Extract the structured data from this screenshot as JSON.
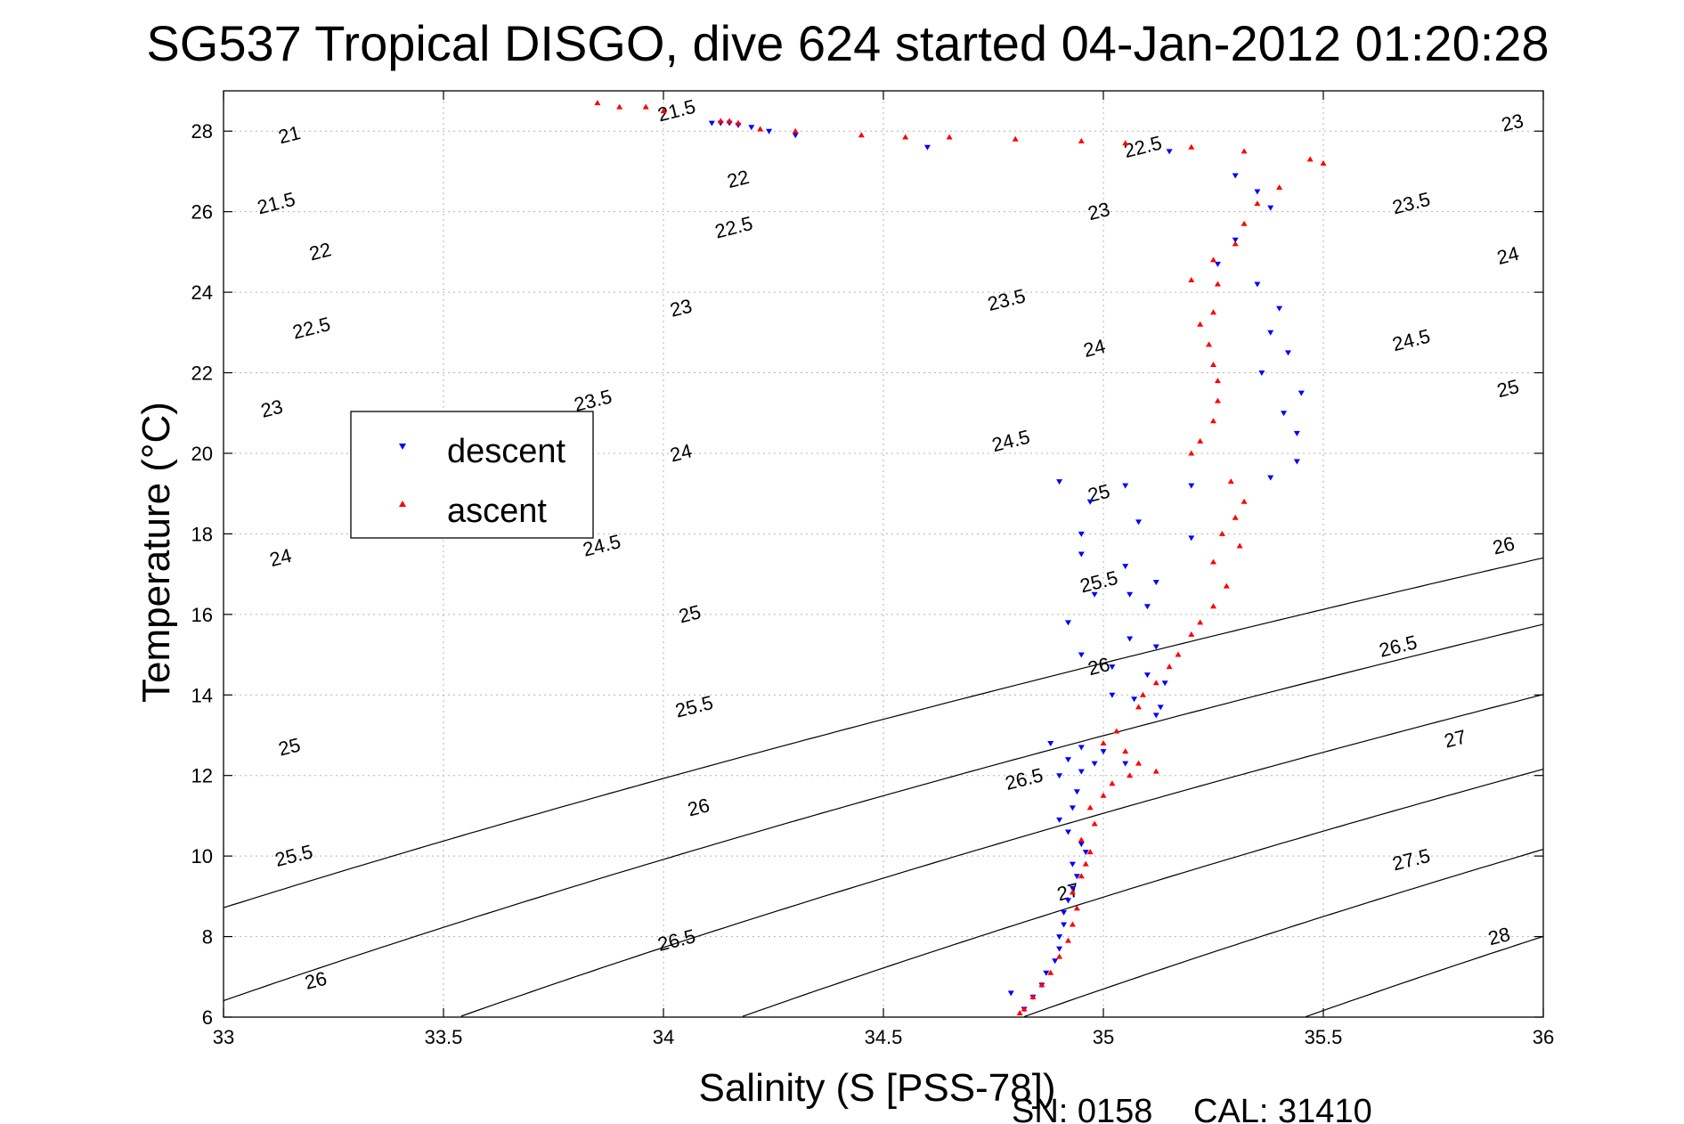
{
  "chart_data": {
    "type": "scatter",
    "title": "SG537 Tropical DISGO, dive 624 started 04-Jan-2012 01:20:28",
    "xlabel": "Salinity (S [PSS-78])",
    "ylabel": "Temperature (°C)",
    "xlim": [
      33,
      36
    ],
    "ylim": [
      6,
      29
    ],
    "xticks": [
      33,
      33.5,
      34,
      34.5,
      35,
      35.5,
      36
    ],
    "xtick_labels": [
      "33",
      "33.5",
      "34",
      "34.5",
      "35",
      "35.5",
      "36"
    ],
    "yticks": [
      6,
      8,
      10,
      12,
      14,
      16,
      18,
      20,
      22,
      24,
      26,
      28
    ],
    "ytick_labels": [
      "6",
      "8",
      "10",
      "12",
      "14",
      "16",
      "18",
      "20",
      "22",
      "24",
      "26",
      "28"
    ],
    "grid": true,
    "legend_position": "upper-left",
    "density_contours": [
      21,
      21.5,
      22,
      22.5,
      23,
      23.5,
      24,
      24.5,
      25,
      25.5,
      26,
      26.5,
      27,
      27.5,
      28
    ],
    "contour_labels": [
      {
        "text": "21",
        "s": 33.15,
        "t": 27.9
      },
      {
        "text": "21.5",
        "s": 34.03,
        "t": 28.5
      },
      {
        "text": "21.5",
        "s": 33.12,
        "t": 26.2
      },
      {
        "text": "22",
        "s": 34.17,
        "t": 26.8
      },
      {
        "text": "22",
        "s": 33.22,
        "t": 25.0
      },
      {
        "text": "22.5",
        "s": 35.09,
        "t": 27.6
      },
      {
        "text": "22.5",
        "s": 34.16,
        "t": 25.6
      },
      {
        "text": "22.5",
        "s": 33.2,
        "t": 23.1
      },
      {
        "text": "23",
        "s": 35.93,
        "t": 28.2
      },
      {
        "text": "23",
        "s": 34.99,
        "t": 26.0
      },
      {
        "text": "23",
        "s": 34.04,
        "t": 23.6
      },
      {
        "text": "23",
        "s": 33.11,
        "t": 21.1
      },
      {
        "text": "23.5",
        "s": 35.7,
        "t": 26.2
      },
      {
        "text": "23.5",
        "s": 34.78,
        "t": 23.8
      },
      {
        "text": "23.5",
        "s": 33.84,
        "t": 21.3
      },
      {
        "text": "24",
        "s": 35.92,
        "t": 24.9
      },
      {
        "text": "24",
        "s": 34.98,
        "t": 22.6
      },
      {
        "text": "24",
        "s": 34.04,
        "t": 20.0
      },
      {
        "text": "24",
        "s": 33.13,
        "t": 17.4
      },
      {
        "text": "24.5",
        "s": 35.7,
        "t": 22.8
      },
      {
        "text": "24.5",
        "s": 34.79,
        "t": 20.3
      },
      {
        "text": "24.5",
        "s": 33.86,
        "t": 17.7
      },
      {
        "text": "25",
        "s": 35.92,
        "t": 21.6
      },
      {
        "text": "25",
        "s": 34.99,
        "t": 19.0
      },
      {
        "text": "25",
        "s": 34.06,
        "t": 16.0
      },
      {
        "text": "25",
        "s": 33.15,
        "t": 12.7
      },
      {
        "text": "25.5",
        "s": 34.99,
        "t": 16.8
      },
      {
        "text": "25.5",
        "s": 34.07,
        "t": 13.7
      },
      {
        "text": "25.5",
        "s": 33.16,
        "t": 10.0
      },
      {
        "text": "26",
        "s": 35.91,
        "t": 17.7
      },
      {
        "text": "26",
        "s": 34.99,
        "t": 14.7
      },
      {
        "text": "26",
        "s": 34.08,
        "t": 11.2
      },
      {
        "text": "26",
        "s": 33.21,
        "t": 6.9
      },
      {
        "text": "26.5",
        "s": 35.67,
        "t": 15.2
      },
      {
        "text": "26.5",
        "s": 34.82,
        "t": 11.9
      },
      {
        "text": "26.5",
        "s": 34.03,
        "t": 7.9
      },
      {
        "text": "27",
        "s": 35.8,
        "t": 12.9
      },
      {
        "text": "27",
        "s": 34.92,
        "t": 9.1
      },
      {
        "text": "27.5",
        "s": 35.7,
        "t": 9.9
      },
      {
        "text": "28",
        "s": 35.9,
        "t": 8.0
      }
    ],
    "series": [
      {
        "name": "descent",
        "color": "#0000ff",
        "marker": "triangle-down",
        "points": [
          [
            34.11,
            28.2
          ],
          [
            34.13,
            28.2
          ],
          [
            34.15,
            28.2
          ],
          [
            34.17,
            28.15
          ],
          [
            34.2,
            28.1
          ],
          [
            34.24,
            28.0
          ],
          [
            34.3,
            27.9
          ],
          [
            34.6,
            27.6
          ],
          [
            35.15,
            27.5
          ],
          [
            35.3,
            26.9
          ],
          [
            35.35,
            26.5
          ],
          [
            35.38,
            26.1
          ],
          [
            35.3,
            25.3
          ],
          [
            35.26,
            24.7
          ],
          [
            35.35,
            24.2
          ],
          [
            35.4,
            23.6
          ],
          [
            35.38,
            23.0
          ],
          [
            35.42,
            22.5
          ],
          [
            35.36,
            22.0
          ],
          [
            35.45,
            21.5
          ],
          [
            35.41,
            21.0
          ],
          [
            35.44,
            20.5
          ],
          [
            35.44,
            19.8
          ],
          [
            35.38,
            19.4
          ],
          [
            35.2,
            19.2
          ],
          [
            35.05,
            19.2
          ],
          [
            34.9,
            19.3
          ],
          [
            34.97,
            18.8
          ],
          [
            35.08,
            18.3
          ],
          [
            34.95,
            18.0
          ],
          [
            35.2,
            17.9
          ],
          [
            34.95,
            17.5
          ],
          [
            35.05,
            17.2
          ],
          [
            35.12,
            16.8
          ],
          [
            34.98,
            16.5
          ],
          [
            35.06,
            16.5
          ],
          [
            35.1,
            16.2
          ],
          [
            34.92,
            15.8
          ],
          [
            35.06,
            15.4
          ],
          [
            35.12,
            15.2
          ],
          [
            34.95,
            15.0
          ],
          [
            35.02,
            14.7
          ],
          [
            35.1,
            14.5
          ],
          [
            35.14,
            14.3
          ],
          [
            35.02,
            14.0
          ],
          [
            35.07,
            13.9
          ],
          [
            35.13,
            13.7
          ],
          [
            35.12,
            13.5
          ],
          [
            34.88,
            12.8
          ],
          [
            34.95,
            12.7
          ],
          [
            35.0,
            12.6
          ],
          [
            34.92,
            12.4
          ],
          [
            34.98,
            12.3
          ],
          [
            35.05,
            12.3
          ],
          [
            34.95,
            12.1
          ],
          [
            34.9,
            12.0
          ],
          [
            34.94,
            11.6
          ],
          [
            34.93,
            11.2
          ],
          [
            34.9,
            10.9
          ],
          [
            34.92,
            10.6
          ],
          [
            34.95,
            10.3
          ],
          [
            34.96,
            10.1
          ],
          [
            34.93,
            9.8
          ],
          [
            34.94,
            9.5
          ],
          [
            34.93,
            9.2
          ],
          [
            34.92,
            8.9
          ],
          [
            34.91,
            8.6
          ],
          [
            34.91,
            8.3
          ],
          [
            34.9,
            8.0
          ],
          [
            34.9,
            7.7
          ],
          [
            34.89,
            7.4
          ],
          [
            34.87,
            7.1
          ],
          [
            34.86,
            6.8
          ],
          [
            34.84,
            6.5
          ],
          [
            34.82,
            6.2
          ],
          [
            34.79,
            6.6
          ]
        ]
      },
      {
        "name": "ascent",
        "color": "#ff0000",
        "marker": "triangle-up",
        "points": [
          [
            33.85,
            28.7
          ],
          [
            33.9,
            28.6
          ],
          [
            33.96,
            28.6
          ],
          [
            34.0,
            28.5
          ],
          [
            34.13,
            28.25
          ],
          [
            34.15,
            28.25
          ],
          [
            34.17,
            28.2
          ],
          [
            34.22,
            28.05
          ],
          [
            34.3,
            28.0
          ],
          [
            34.45,
            27.9
          ],
          [
            34.55,
            27.85
          ],
          [
            34.65,
            27.85
          ],
          [
            34.8,
            27.8
          ],
          [
            34.95,
            27.75
          ],
          [
            35.05,
            27.7
          ],
          [
            35.2,
            27.6
          ],
          [
            35.32,
            27.5
          ],
          [
            35.47,
            27.3
          ],
          [
            35.5,
            27.2
          ],
          [
            35.4,
            26.6
          ],
          [
            35.35,
            26.2
          ],
          [
            35.32,
            25.7
          ],
          [
            35.3,
            25.2
          ],
          [
            35.25,
            24.8
          ],
          [
            35.2,
            24.3
          ],
          [
            35.26,
            24.2
          ],
          [
            35.25,
            23.5
          ],
          [
            35.22,
            23.2
          ],
          [
            35.24,
            22.7
          ],
          [
            35.25,
            22.2
          ],
          [
            35.26,
            21.8
          ],
          [
            35.26,
            21.3
          ],
          [
            35.25,
            20.8
          ],
          [
            35.22,
            20.3
          ],
          [
            35.2,
            20.0
          ],
          [
            35.29,
            19.3
          ],
          [
            35.32,
            18.8
          ],
          [
            35.3,
            18.4
          ],
          [
            35.27,
            18.0
          ],
          [
            35.31,
            17.7
          ],
          [
            35.25,
            17.3
          ],
          [
            35.28,
            16.7
          ],
          [
            35.25,
            16.2
          ],
          [
            35.22,
            15.8
          ],
          [
            35.2,
            15.5
          ],
          [
            35.17,
            15.0
          ],
          [
            35.15,
            14.7
          ],
          [
            35.12,
            14.3
          ],
          [
            35.09,
            14.0
          ],
          [
            35.08,
            13.7
          ],
          [
            35.03,
            13.1
          ],
          [
            35.0,
            12.8
          ],
          [
            35.05,
            12.6
          ],
          [
            35.08,
            12.3
          ],
          [
            35.12,
            12.1
          ],
          [
            35.06,
            12.0
          ],
          [
            35.02,
            11.8
          ],
          [
            35.0,
            11.5
          ],
          [
            34.97,
            11.2
          ],
          [
            34.98,
            10.8
          ],
          [
            34.95,
            10.4
          ],
          [
            34.97,
            10.1
          ],
          [
            34.96,
            9.8
          ],
          [
            34.95,
            9.5
          ],
          [
            34.93,
            9.1
          ],
          [
            34.94,
            8.7
          ],
          [
            34.93,
            8.3
          ],
          [
            34.92,
            7.9
          ],
          [
            34.9,
            7.5
          ],
          [
            34.88,
            7.1
          ],
          [
            34.86,
            6.8
          ],
          [
            34.84,
            6.5
          ],
          [
            34.82,
            6.2
          ],
          [
            34.81,
            6.1
          ]
        ]
      }
    ]
  },
  "footer": {
    "serial": "SN: 0158",
    "calibration": "CAL: 31410"
  }
}
